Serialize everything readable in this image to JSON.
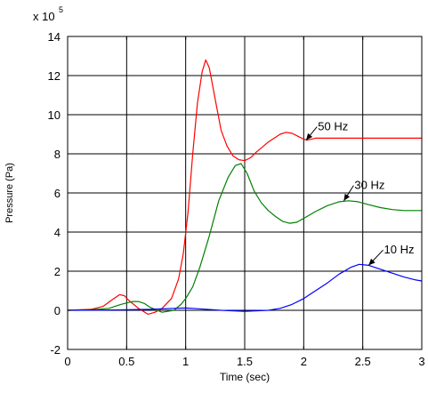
{
  "chart_data": {
    "type": "line",
    "xlabel": "Time (sec)",
    "ylabel": "Pressure (Pa)",
    "exponent_label": {
      "prefix": "x 10",
      "power": "5"
    },
    "xlim": [
      0,
      3
    ],
    "ylim": [
      -2,
      14
    ],
    "xticks": [
      0,
      0.5,
      1,
      1.5,
      2,
      2.5,
      3
    ],
    "yticks": [
      -2,
      0,
      2,
      4,
      6,
      8,
      10,
      12,
      14
    ],
    "xtick_labels": [
      "0",
      "0.5",
      "1",
      "1.5",
      "2",
      "2.5",
      "3"
    ],
    "ytick_labels": [
      "-2",
      "0",
      "2",
      "4",
      "6",
      "8",
      "10",
      "12",
      "14"
    ],
    "grid": true,
    "series": [
      {
        "name": "50 Hz",
        "color": "#ff0000",
        "points": [
          [
            0,
            0
          ],
          [
            0.2,
            0.05
          ],
          [
            0.3,
            0.2
          ],
          [
            0.38,
            0.55
          ],
          [
            0.44,
            0.8
          ],
          [
            0.48,
            0.75
          ],
          [
            0.52,
            0.5
          ],
          [
            0.6,
            0.1
          ],
          [
            0.68,
            -0.2
          ],
          [
            0.74,
            -0.1
          ],
          [
            0.8,
            0.1
          ],
          [
            0.88,
            0.6
          ],
          [
            0.94,
            1.6
          ],
          [
            0.98,
            2.9
          ],
          [
            1.02,
            5.0
          ],
          [
            1.06,
            8.0
          ],
          [
            1.1,
            10.6
          ],
          [
            1.14,
            12.2
          ],
          [
            1.17,
            12.8
          ],
          [
            1.2,
            12.4
          ],
          [
            1.25,
            10.8
          ],
          [
            1.3,
            9.2
          ],
          [
            1.35,
            8.4
          ],
          [
            1.4,
            7.9
          ],
          [
            1.45,
            7.7
          ],
          [
            1.5,
            7.65
          ],
          [
            1.55,
            7.8
          ],
          [
            1.6,
            8.1
          ],
          [
            1.7,
            8.6
          ],
          [
            1.8,
            9.0
          ],
          [
            1.85,
            9.1
          ],
          [
            1.9,
            9.05
          ],
          [
            1.95,
            8.9
          ],
          [
            2.0,
            8.75
          ],
          [
            2.03,
            8.7
          ],
          [
            2.1,
            8.8
          ],
          [
            2.2,
            8.8
          ],
          [
            2.4,
            8.8
          ],
          [
            2.6,
            8.8
          ],
          [
            2.8,
            8.8
          ],
          [
            3.0,
            8.8
          ]
        ],
        "label": "50 Hz"
      },
      {
        "name": "30 Hz",
        "color": "#008000",
        "points": [
          [
            0,
            0
          ],
          [
            0.2,
            0.03
          ],
          [
            0.35,
            0.1
          ],
          [
            0.45,
            0.3
          ],
          [
            0.55,
            0.45
          ],
          [
            0.6,
            0.45
          ],
          [
            0.65,
            0.35
          ],
          [
            0.7,
            0.15
          ],
          [
            0.8,
            -0.1
          ],
          [
            0.9,
            0.0
          ],
          [
            0.96,
            0.3
          ],
          [
            1.0,
            0.6
          ],
          [
            1.06,
            1.2
          ],
          [
            1.12,
            2.2
          ],
          [
            1.2,
            3.8
          ],
          [
            1.28,
            5.6
          ],
          [
            1.36,
            6.8
          ],
          [
            1.42,
            7.4
          ],
          [
            1.47,
            7.5
          ],
          [
            1.52,
            7.0
          ],
          [
            1.58,
            6.1
          ],
          [
            1.64,
            5.5
          ],
          [
            1.7,
            5.1
          ],
          [
            1.76,
            4.8
          ],
          [
            1.82,
            4.55
          ],
          [
            1.88,
            4.45
          ],
          [
            1.94,
            4.5
          ],
          [
            2.0,
            4.7
          ],
          [
            2.1,
            5.05
          ],
          [
            2.2,
            5.35
          ],
          [
            2.3,
            5.55
          ],
          [
            2.38,
            5.6
          ],
          [
            2.46,
            5.55
          ],
          [
            2.55,
            5.4
          ],
          [
            2.65,
            5.25
          ],
          [
            2.75,
            5.15
          ],
          [
            2.85,
            5.1
          ],
          [
            3.0,
            5.1
          ]
        ],
        "label": "30 Hz"
      },
      {
        "name": "10 Hz",
        "color": "#0000ff",
        "points": [
          [
            0,
            0
          ],
          [
            0.4,
            0.02
          ],
          [
            0.7,
            0.05
          ],
          [
            0.9,
            0.1
          ],
          [
            1.0,
            0.12
          ],
          [
            1.1,
            0.08
          ],
          [
            1.3,
            0.0
          ],
          [
            1.5,
            -0.05
          ],
          [
            1.7,
            0.0
          ],
          [
            1.8,
            0.1
          ],
          [
            1.9,
            0.3
          ],
          [
            2.0,
            0.6
          ],
          [
            2.1,
            1.0
          ],
          [
            2.2,
            1.4
          ],
          [
            2.3,
            1.85
          ],
          [
            2.4,
            2.2
          ],
          [
            2.47,
            2.35
          ],
          [
            2.55,
            2.3
          ],
          [
            2.65,
            2.1
          ],
          [
            2.75,
            1.9
          ],
          [
            2.85,
            1.7
          ],
          [
            2.95,
            1.55
          ],
          [
            3.0,
            1.5
          ]
        ],
        "label": "10 Hz"
      }
    ],
    "annotations": [
      {
        "text": "50 Hz",
        "color": "#000000",
        "label_at": [
          2.12,
          9.2
        ],
        "arrow_to": [
          2.02,
          8.7
        ]
      },
      {
        "text": "30 Hz",
        "color": "#000000",
        "label_at": [
          2.43,
          6.2
        ],
        "arrow_to": [
          2.34,
          5.6
        ]
      },
      {
        "text": "10 Hz",
        "color": "#000000",
        "label_at": [
          2.68,
          2.9
        ],
        "arrow_to": [
          2.55,
          2.3
        ]
      }
    ]
  }
}
